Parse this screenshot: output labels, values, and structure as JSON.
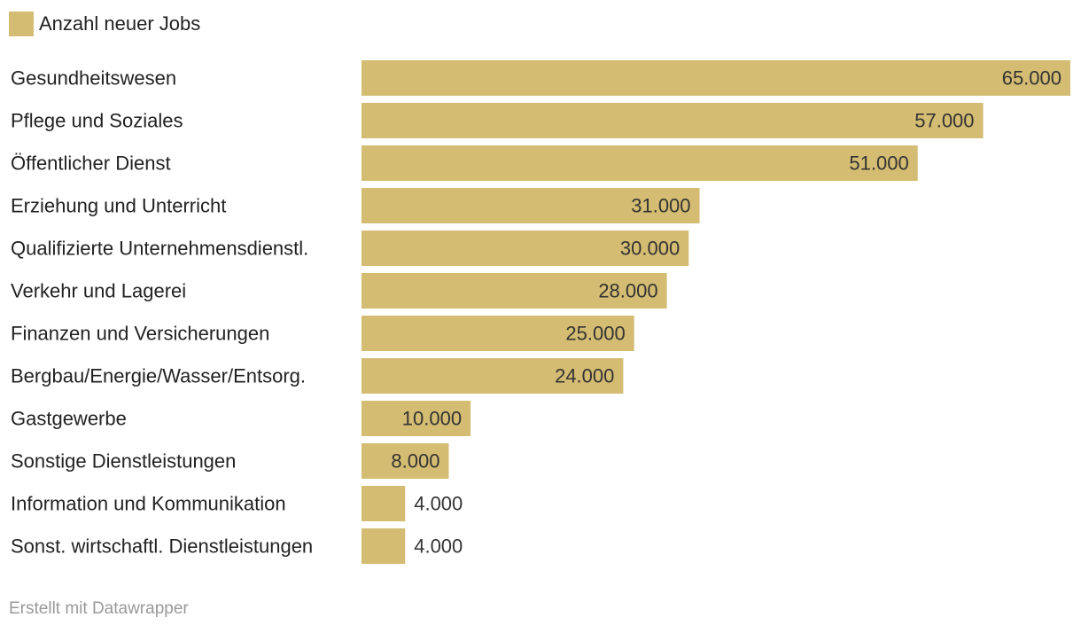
{
  "chart_data": {
    "type": "bar",
    "orientation": "horizontal",
    "title": "",
    "xlabel": "",
    "ylabel": "",
    "legend_position": "top-left",
    "grid": false,
    "bar_color": "#d4bc72",
    "xlim": [
      0,
      65000
    ],
    "series": [
      {
        "name": "Anzahl neuer Jobs",
        "values": [
          65000,
          57000,
          51000,
          31000,
          30000,
          28000,
          25000,
          24000,
          10000,
          8000,
          4000,
          4000
        ]
      }
    ],
    "categories": [
      "Gesundheitswesen",
      "Pflege und Soziales",
      "Öffentlicher Dienst",
      "Erziehung und Unterricht",
      "Qualifizierte Unternehmensdienstl.",
      "Verkehr und Lagerei",
      "Finanzen und Versicherungen",
      "Bergbau/Energie/Wasser/Entsorg.",
      "Gastgewerbe",
      "Sonstige Dienstleistungen",
      "Information und Kommunikation",
      "Sonst. wirtschaftl. Dienstleistungen"
    ],
    "value_labels": [
      "65.000",
      "57.000",
      "51.000",
      "31.000",
      "30.000",
      "28.000",
      "25.000",
      "24.000",
      "10.000",
      "8.000",
      "4.000",
      "4.000"
    ]
  },
  "footer": {
    "credit": "Erstellt mit Datawrapper"
  }
}
